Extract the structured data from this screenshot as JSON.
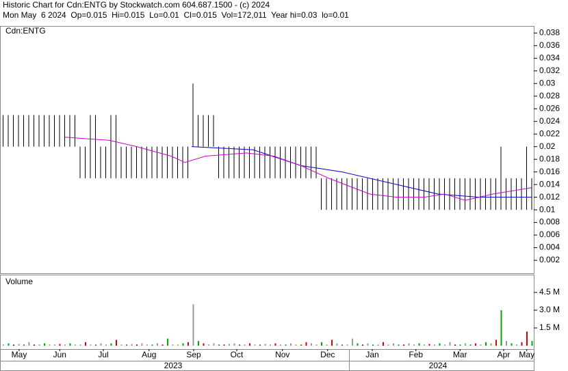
{
  "header": {
    "title": "Historic Chart for Cdn:ENTG by Stockwatch.com 604.687.1500 - (c) 2024",
    "info": "Mon May  6 2024  Op=0.015  Hi=0.015  Lo=0.01  Cl=0.015  Vol=172,011  Year hi=0.03  lo=0.01"
  },
  "chart_data": {
    "type": "ohlc",
    "title": "Cdn:ENTG",
    "volume_title": "Volume",
    "xlim": [
      0,
      103
    ],
    "xticks": [
      {
        "value": 3.2,
        "label": "May"
      },
      {
        "value": 11.1,
        "label": "Jun"
      },
      {
        "value": 19.6,
        "label": "Jul"
      },
      {
        "value": 28.5,
        "label": "Aug"
      },
      {
        "value": 37.2,
        "label": "Sep"
      },
      {
        "value": 45.6,
        "label": "Oct"
      },
      {
        "value": 54.5,
        "label": "Nov"
      },
      {
        "value": 63.3,
        "label": "Dec"
      },
      {
        "value": 72,
        "label": "Jan"
      },
      {
        "value": 80.5,
        "label": "Feb"
      },
      {
        "value": 89.1,
        "label": "Mar"
      },
      {
        "value": 97.6,
        "label": "Apr"
      },
      {
        "value": 102.1,
        "label": "May"
      }
    ],
    "year_ticks": [
      {
        "value": 33.2,
        "label": "2023"
      },
      {
        "value": 84.8,
        "label": "2024"
      }
    ],
    "ylim": [
      0,
      0.0389
    ],
    "yticks": [
      0.002,
      0.004,
      0.006,
      0.008,
      0.01,
      0.012,
      0.014,
      0.016,
      0.018,
      0.02,
      0.022,
      0.024,
      0.026,
      0.028,
      0.03,
      0.032,
      0.034,
      0.036,
      0.038
    ],
    "bar_color": "#000000",
    "highs": [
      0.025,
      0.025,
      0.025,
      0.025,
      0.025,
      0.025,
      0.025,
      0.025,
      0.025,
      0.025,
      0.025,
      0.025,
      0.025,
      0.025,
      0.025,
      0.02,
      0.02,
      0.025,
      0.025,
      0.02,
      0.02,
      0.025,
      0.025,
      0.02,
      0.02,
      0.02,
      0.02,
      0.02,
      0.02,
      0.02,
      0.02,
      0.02,
      0.02,
      0.02,
      0.02,
      0.02,
      0.02,
      0.03,
      0.025,
      0.025,
      0.025,
      0.025,
      0.02,
      0.02,
      0.02,
      0.02,
      0.02,
      0.02,
      0.02,
      0.02,
      0.02,
      0.02,
      0.02,
      0.02,
      0.02,
      0.02,
      0.02,
      0.02,
      0.02,
      0.02,
      0.02,
      0.02,
      0.015,
      0.015,
      0.015,
      0.015,
      0.015,
      0.015,
      0.015,
      0.015,
      0.015,
      0.015,
      0.015,
      0.015,
      0.015,
      0.015,
      0.015,
      0.015,
      0.015,
      0.015,
      0.015,
      0.015,
      0.015,
      0.015,
      0.015,
      0.015,
      0.015,
      0.015,
      0.015,
      0.015,
      0.015,
      0.015,
      0.015,
      0.015,
      0.015,
      0.015,
      0.015,
      0.02,
      0.015,
      0.015,
      0.015,
      0.015,
      0.02,
      0.015
    ],
    "lows": [
      0.02,
      0.02,
      0.02,
      0.02,
      0.02,
      0.02,
      0.02,
      0.02,
      0.02,
      0.02,
      0.02,
      0.02,
      0.02,
      0.02,
      0.02,
      0.015,
      0.015,
      0.015,
      0.015,
      0.015,
      0.015,
      0.015,
      0.015,
      0.015,
      0.015,
      0.015,
      0.015,
      0.015,
      0.015,
      0.015,
      0.015,
      0.015,
      0.015,
      0.015,
      0.015,
      0.015,
      0.015,
      0.02,
      0.02,
      0.02,
      0.02,
      0.02,
      0.015,
      0.015,
      0.015,
      0.015,
      0.015,
      0.015,
      0.015,
      0.015,
      0.015,
      0.015,
      0.015,
      0.015,
      0.015,
      0.015,
      0.015,
      0.015,
      0.015,
      0.015,
      0.015,
      0.015,
      0.01,
      0.01,
      0.01,
      0.01,
      0.01,
      0.01,
      0.01,
      0.01,
      0.01,
      0.01,
      0.01,
      0.01,
      0.01,
      0.01,
      0.01,
      0.01,
      0.01,
      0.01,
      0.01,
      0.01,
      0.01,
      0.01,
      0.01,
      0.01,
      0.01,
      0.01,
      0.01,
      0.01,
      0.01,
      0.01,
      0.01,
      0.01,
      0.01,
      0.01,
      0.01,
      0.01,
      0.01,
      0.01,
      0.01,
      0.01,
      0.01,
      0.01
    ],
    "averages": [
      {
        "color": "#0000cc",
        "x": [
          36.8,
          48.8,
          58.1,
          66.1,
          76.8,
          84.8,
          92.8,
          103
        ],
        "values": [
          0.02,
          0.0195,
          0.017,
          0.016,
          0.014,
          0.0125,
          0.012,
          0.012
        ]
      },
      {
        "color": "#cc00cc",
        "x": [
          12.1,
          20.8,
          26.1,
          32.8,
          35.5,
          39.5,
          47.5,
          52.8,
          58.1,
          63.5,
          71.5,
          76.8,
          82.1,
          86.1,
          90.1,
          95.5,
          103
        ],
        "values": [
          0.0215,
          0.021,
          0.02,
          0.0185,
          0.0175,
          0.0185,
          0.019,
          0.0185,
          0.017,
          0.015,
          0.0125,
          0.012,
          0.012,
          0.0125,
          0.0115,
          0.0125,
          0.0135
        ]
      }
    ],
    "vlim": [
      0,
      6
    ],
    "vticks": [
      {
        "value": 1.5,
        "label": "1.5 M"
      },
      {
        "value": 3,
        "label": "3.0 M"
      },
      {
        "value": 4.5,
        "label": "4.5 M"
      }
    ],
    "volume": [
      0.1,
      0.2,
      0.1,
      0.15,
      0.1,
      0.3,
      0.1,
      0.1,
      0.2,
      0.1,
      0.1,
      0.15,
      0.1,
      0.2,
      0.1,
      0.1,
      0.3,
      0.1,
      0.1,
      0.2,
      0.1,
      0.2,
      0.5,
      0.1,
      0.1,
      0.15,
      0.1,
      0.2,
      0.1,
      0.1,
      0.2,
      0.1,
      0.6,
      0.1,
      0.1,
      0.2,
      0.3,
      3.5,
      0.4,
      0.2,
      0.1,
      0.2,
      0.1,
      0.1,
      0.15,
      0.2,
      0.1,
      0.1,
      0.2,
      0.1,
      0.1,
      0.15,
      0.1,
      0.2,
      0.1,
      0.1,
      0.2,
      0.1,
      0.1,
      0.3,
      0.2,
      0.1,
      0.3,
      0.1,
      0.5,
      0.2,
      0.1,
      0.1,
      0.6,
      0.2,
      0.1,
      0.2,
      0.1,
      0.1,
      0.3,
      0.1,
      0.2,
      0.1,
      0.1,
      0.2,
      0.1,
      0.2,
      0.1,
      0.15,
      0.1,
      0.2,
      0.1,
      0.3,
      0.1,
      0.1,
      0.2,
      0.1,
      0.2,
      0.1,
      0.3,
      0.2,
      0.5,
      3.0,
      0.4,
      0.2,
      0.1,
      0.3,
      1.2,
      0.4
    ],
    "volume_palette": {
      "u": "#00aa00",
      "d": "#dd0000",
      "n": "#999999"
    },
    "volume_colors": [
      "n",
      "u",
      "d",
      "n",
      "u",
      "n",
      "d",
      "n",
      "u",
      "n",
      "n",
      "d",
      "n",
      "u",
      "n",
      "n",
      "d",
      "n",
      "u",
      "n",
      "n",
      "u",
      "d",
      "n",
      "u",
      "n",
      "d",
      "n",
      "n",
      "u",
      "n",
      "d",
      "u",
      "n",
      "n",
      "u",
      "d",
      "n",
      "u",
      "d",
      "n",
      "n",
      "u",
      "d",
      "n",
      "n",
      "u",
      "n",
      "d",
      "n",
      "u",
      "n",
      "n",
      "d",
      "n",
      "u",
      "n",
      "n",
      "u",
      "d",
      "n",
      "n",
      "u",
      "n",
      "d",
      "n",
      "u",
      "n",
      "n",
      "u",
      "d",
      "n",
      "u",
      "n",
      "d",
      "n",
      "n",
      "u",
      "d",
      "n",
      "n",
      "u",
      "n",
      "d",
      "n",
      "u",
      "n",
      "n",
      "d",
      "u",
      "n",
      "u",
      "d",
      "n",
      "u",
      "n",
      "d",
      "u",
      "n",
      "u",
      "n",
      "d",
      "d",
      "u"
    ]
  }
}
